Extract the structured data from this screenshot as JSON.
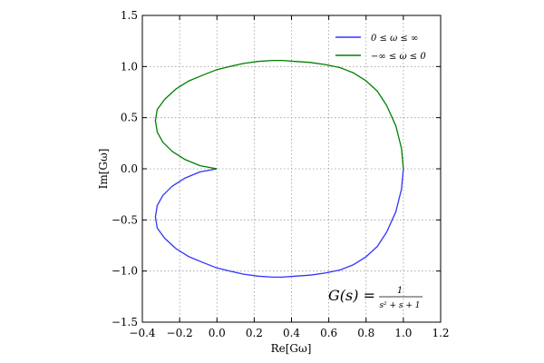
{
  "chart_data": {
    "type": "line",
    "title": "",
    "xlabel": "Re[Gω]",
    "ylabel": "Im[Gω]",
    "xlim": [
      -0.4,
      1.2
    ],
    "ylim": [
      -1.5,
      1.5
    ],
    "grid": true,
    "legend_position": "top-right",
    "x_ticks": [
      "−0.4",
      "−0.2",
      "0.0",
      "0.2",
      "0.4",
      "0.6",
      "0.8",
      "1.0",
      "1.2"
    ],
    "y_ticks": [
      "1.5",
      "1.0",
      "0.5",
      "0.0",
      "−0.5",
      "−1.0",
      "−1.5"
    ],
    "series": [
      {
        "name": "0 ≤ ω ≤ ∞",
        "color": "#3333ff",
        "x": [
          1.0,
          0.99,
          0.96,
          0.91,
          0.86,
          0.8,
          0.73,
          0.66,
          0.58,
          0.5,
          0.42,
          0.35,
          0.3,
          0.22,
          0.14,
          0.07,
          0.0,
          -0.07,
          -0.15,
          -0.22,
          -0.28,
          -0.32,
          -0.33,
          -0.32,
          -0.29,
          -0.24,
          -0.17,
          -0.09,
          0.0
        ],
        "y": [
          0.0,
          -0.2,
          -0.42,
          -0.62,
          -0.76,
          -0.86,
          -0.94,
          -0.99,
          -1.02,
          -1.04,
          -1.05,
          -1.06,
          -1.06,
          -1.05,
          -1.03,
          -1.0,
          -0.97,
          -0.92,
          -0.86,
          -0.78,
          -0.68,
          -0.58,
          -0.47,
          -0.36,
          -0.26,
          -0.17,
          -0.09,
          -0.03,
          0.0
        ]
      },
      {
        "name": "−∞ ≤ ω ≤ 0",
        "color": "#008000",
        "x": [
          1.0,
          0.99,
          0.96,
          0.91,
          0.86,
          0.8,
          0.73,
          0.66,
          0.58,
          0.5,
          0.42,
          0.35,
          0.3,
          0.22,
          0.14,
          0.07,
          0.0,
          -0.07,
          -0.15,
          -0.22,
          -0.28,
          -0.32,
          -0.33,
          -0.32,
          -0.29,
          -0.24,
          -0.17,
          -0.09,
          0.0
        ],
        "y": [
          0.0,
          0.2,
          0.42,
          0.62,
          0.76,
          0.86,
          0.94,
          0.99,
          1.02,
          1.04,
          1.05,
          1.06,
          1.06,
          1.05,
          1.03,
          1.0,
          0.97,
          0.92,
          0.86,
          0.78,
          0.68,
          0.58,
          0.47,
          0.36,
          0.26,
          0.17,
          0.09,
          0.03,
          0.0
        ]
      }
    ],
    "annotation": {
      "lhs": "G(s) =",
      "numerator": "1",
      "denominator": "s² + s + 1"
    }
  }
}
